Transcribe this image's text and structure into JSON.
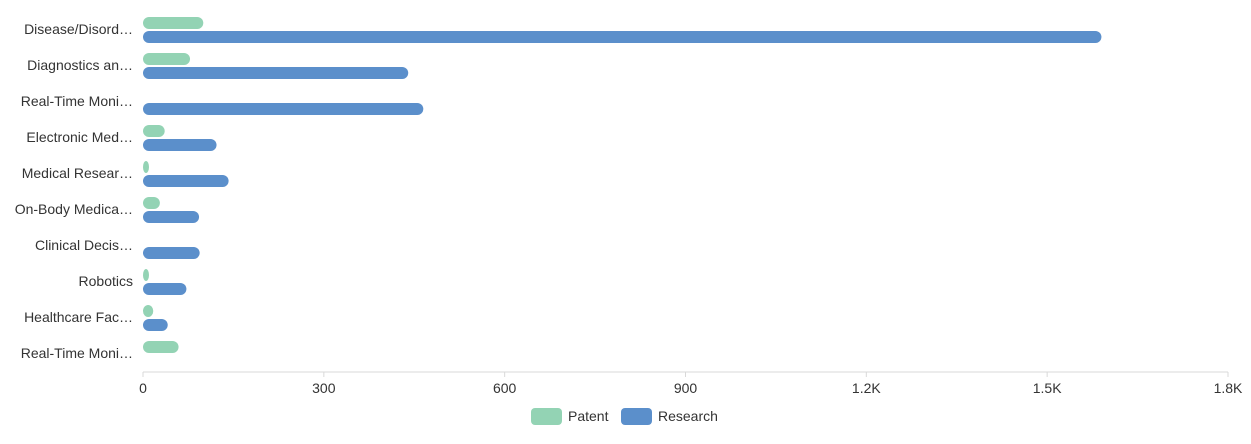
{
  "chart_data": {
    "type": "bar",
    "orientation": "horizontal",
    "categories": [
      "Disease/Disord…",
      "Diagnostics an…",
      "Real-Time Moni…",
      "Electronic Med…",
      "Medical Resear…",
      "On-Body Medica…",
      "Clinical Decis…",
      "Robotics",
      "Healthcare Fac…",
      "Real-Time Moni…"
    ],
    "series": [
      {
        "name": "Patent",
        "color": "#93d3b4",
        "values": [
          100,
          78,
          0,
          36,
          8,
          28,
          0,
          8,
          17,
          59
        ]
      },
      {
        "name": "Research",
        "color": "#5b8fcb",
        "values": [
          1590,
          440,
          465,
          122,
          142,
          93,
          94,
          72,
          41,
          0
        ]
      }
    ],
    "xlim": [
      0,
      1800
    ],
    "x_ticks": [
      "0",
      "300",
      "600",
      "900",
      "1.2K",
      "1.5K",
      "1.8K"
    ],
    "x_tick_values": [
      0,
      300,
      600,
      900,
      1200,
      1500,
      1800
    ],
    "legend_position": "bottom-center",
    "grid": false
  }
}
